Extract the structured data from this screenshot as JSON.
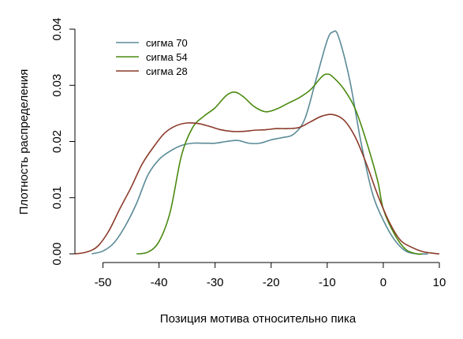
{
  "chart_data": {
    "type": "line",
    "title": "",
    "xlabel": "Позиция мотива относительно пика",
    "ylabel": "Плотность распределения",
    "xlim": [
      -55,
      10
    ],
    "ylim": [
      0,
      0.04
    ],
    "x_ticks": [
      -50,
      -40,
      -30,
      -20,
      -10,
      0,
      10
    ],
    "x_tick_labels": [
      "-50",
      "-40",
      "-30",
      "-20",
      "-10",
      "0",
      "10"
    ],
    "y_ticks": [
      0,
      0.01,
      0.02,
      0.03,
      0.04
    ],
    "y_tick_labels": [
      "0.00",
      "0.01",
      "0.02",
      "0.03",
      "0.04"
    ],
    "grid": false,
    "legend_position": "top-left",
    "series": [
      {
        "name": "сигма 70",
        "color": "#5a8a96",
        "points": [
          [
            -52,
            0.0
          ],
          [
            -50,
            0.0005
          ],
          [
            -48,
            0.002
          ],
          [
            -46,
            0.005
          ],
          [
            -44,
            0.009
          ],
          [
            -42,
            0.014
          ],
          [
            -40,
            0.0168
          ],
          [
            -38,
            0.0183
          ],
          [
            -36,
            0.0193
          ],
          [
            -34,
            0.0197
          ],
          [
            -32,
            0.0197
          ],
          [
            -30,
            0.0197
          ],
          [
            -28,
            0.02
          ],
          [
            -26,
            0.0202
          ],
          [
            -24,
            0.0197
          ],
          [
            -22,
            0.0197
          ],
          [
            -20,
            0.0203
          ],
          [
            -18,
            0.0207
          ],
          [
            -16,
            0.0213
          ],
          [
            -14,
            0.024
          ],
          [
            -12,
            0.031
          ],
          [
            -10,
            0.038
          ],
          [
            -9,
            0.0395
          ],
          [
            -8,
            0.0387
          ],
          [
            -6,
            0.031
          ],
          [
            -4,
            0.02
          ],
          [
            -2,
            0.011
          ],
          [
            0,
            0.006
          ],
          [
            2,
            0.0025
          ],
          [
            4,
            0.0005
          ],
          [
            6,
            0.0
          ],
          [
            8,
            0.0
          ]
        ]
      },
      {
        "name": "сигма 54",
        "color": "#4a8a10",
        "points": [
          [
            -44,
            0.0
          ],
          [
            -42,
            0.0003
          ],
          [
            -40,
            0.0022
          ],
          [
            -38,
            0.0075
          ],
          [
            -36,
            0.0175
          ],
          [
            -34,
            0.0225
          ],
          [
            -32,
            0.0245
          ],
          [
            -30,
            0.026
          ],
          [
            -28,
            0.0282
          ],
          [
            -26.5,
            0.0288
          ],
          [
            -25,
            0.028
          ],
          [
            -23,
            0.0262
          ],
          [
            -21,
            0.0253
          ],
          [
            -19,
            0.0258
          ],
          [
            -17,
            0.0268
          ],
          [
            -15,
            0.0278
          ],
          [
            -13,
            0.0292
          ],
          [
            -11,
            0.0315
          ],
          [
            -10,
            0.032
          ],
          [
            -9,
            0.0315
          ],
          [
            -7,
            0.0293
          ],
          [
            -5,
            0.0258
          ],
          [
            -3,
            0.02
          ],
          [
            -1,
            0.013
          ],
          [
            0,
            0.008
          ],
          [
            2,
            0.0035
          ],
          [
            4,
            0.0008
          ],
          [
            6,
            0.0
          ],
          [
            7,
            0.0
          ]
        ]
      },
      {
        "name": "сигма 28",
        "color": "#8b3a2a",
        "points": [
          [
            -55,
            0.0
          ],
          [
            -53,
            0.0003
          ],
          [
            -51,
            0.0013
          ],
          [
            -49,
            0.004
          ],
          [
            -47,
            0.008
          ],
          [
            -45,
            0.0118
          ],
          [
            -43,
            0.016
          ],
          [
            -41,
            0.019
          ],
          [
            -39,
            0.0215
          ],
          [
            -37,
            0.0228
          ],
          [
            -35,
            0.0233
          ],
          [
            -33,
            0.0232
          ],
          [
            -31,
            0.0227
          ],
          [
            -29,
            0.0221
          ],
          [
            -27,
            0.0218
          ],
          [
            -25,
            0.0218
          ],
          [
            -23,
            0.022
          ],
          [
            -21,
            0.0221
          ],
          [
            -19,
            0.0223
          ],
          [
            -17,
            0.0223
          ],
          [
            -15,
            0.0225
          ],
          [
            -13,
            0.0235
          ],
          [
            -11,
            0.0245
          ],
          [
            -9,
            0.0248
          ],
          [
            -7,
            0.0238
          ],
          [
            -5,
            0.0208
          ],
          [
            -3,
            0.016
          ],
          [
            -1,
            0.0105
          ],
          [
            1,
            0.0058
          ],
          [
            3,
            0.0025
          ],
          [
            5,
            0.0012
          ],
          [
            7,
            0.0004
          ],
          [
            9,
            0.0001
          ],
          [
            10,
            0.0
          ]
        ]
      }
    ]
  }
}
